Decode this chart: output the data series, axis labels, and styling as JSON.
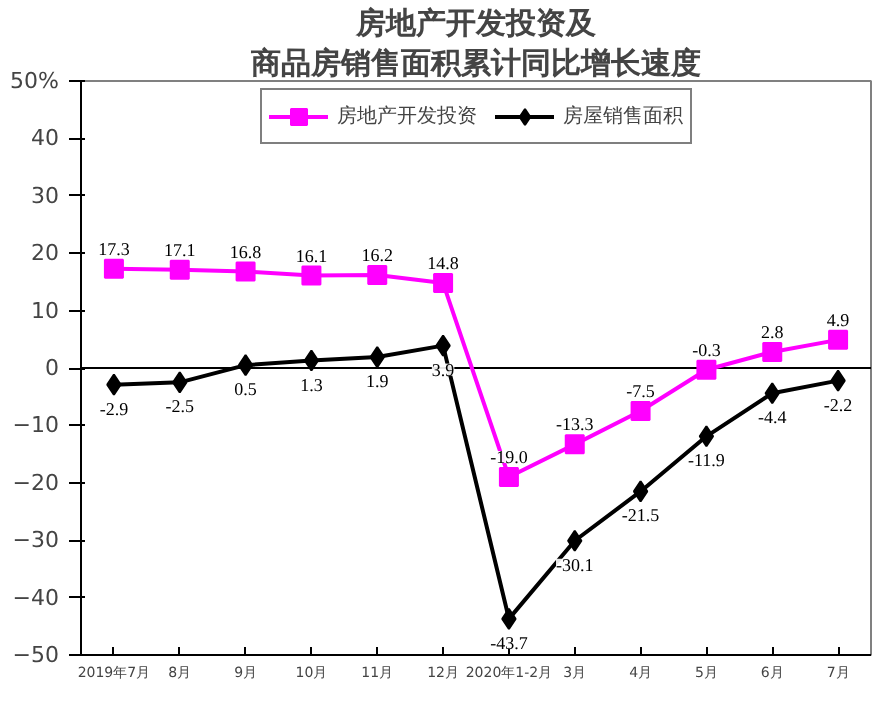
{
  "chart_data": {
    "type": "line",
    "title": "房地产开发投资及",
    "subtitle": "商品房销售面积累计同比增长速度",
    "ref_lines": [
      {
        "axis": "y",
        "value": 0,
        "color": "#000000",
        "line_style": "solid"
      }
    ],
    "categories": [
      "2019年7月",
      "8月",
      "9月",
      "10月",
      "11月",
      "12月",
      "2020年1-2月",
      "3月",
      "4月",
      "5月",
      "6月",
      "7月"
    ],
    "series": [
      {
        "name": "房地产开发投资",
        "color": "#ff00ff",
        "marker": "square",
        "values": [
          17.3,
          17.1,
          16.8,
          16.1,
          16.2,
          14.8,
          -19.0,
          -13.3,
          -7.5,
          -0.3,
          2.8,
          4.9
        ],
        "value_labels": [
          "17.3",
          "17.1",
          "16.8",
          "16.1",
          "16.2",
          "14.8",
          "-19.0",
          "-13.3",
          "-7.5",
          "-0.3",
          "2.8",
          "4.9"
        ]
      },
      {
        "name": "房屋销售面积",
        "color": "#000000",
        "marker": "diamond",
        "values": [
          -2.9,
          -2.5,
          0.5,
          1.3,
          1.9,
          3.9,
          -43.7,
          -30.1,
          -21.5,
          -11.9,
          -4.4,
          -2.2
        ],
        "value_labels": [
          "-2.9",
          "-2.5",
          "0.5",
          "1.3",
          "1.9",
          "3.9",
          "-43.7",
          "-30.1",
          "-21.5",
          "-11.9",
          "-4.4",
          "-2.2"
        ]
      }
    ],
    "ylim": [
      -50,
      50
    ],
    "yticks": [
      -50,
      -40,
      -30,
      -20,
      -10,
      0,
      10,
      20,
      30,
      40,
      {
        "value": 50,
        "label": "50%"
      }
    ],
    "grid": false,
    "legend": "top",
    "line_style": "solid"
  }
}
